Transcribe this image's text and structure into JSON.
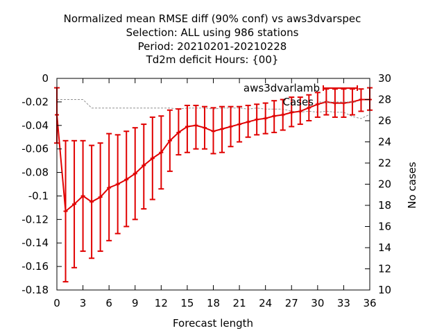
{
  "chart_data": {
    "type": "line",
    "title_lines": [
      "Normalized mean RMSE diff (90% conf) vs aws3dvarspec",
      "Selection: ALL using   986 stations",
      "Period: 20210201-20210228",
      "Td2m deficit   Hours: {00}"
    ],
    "xlabel": "Forecast length",
    "ylabel": "",
    "y2label": "No cases",
    "xlim": [
      0,
      36
    ],
    "ylim": [
      -0.18,
      0
    ],
    "y2lim": [
      10,
      30
    ],
    "xticks": [
      "0",
      "3",
      "6",
      "9",
      "12",
      "15",
      "18",
      "21",
      "24",
      "27",
      "30",
      "33",
      "36"
    ],
    "yticks": [
      "0",
      "-0.02",
      "-0.04",
      "-0.06",
      "-0.08",
      "-0.1",
      "-0.12",
      "-0.14",
      "-0.16",
      "-0.18"
    ],
    "y2ticks": [
      "30",
      "28",
      "26",
      "24",
      "22",
      "20",
      "18",
      "16",
      "14",
      "12",
      "10"
    ],
    "grid": false,
    "legend_position": "top-right",
    "colors": {
      "series": "#e00000",
      "cases": "#909090",
      "axes": "#000000"
    },
    "series": [
      {
        "name": "aws3dvarlamb",
        "x": [
          0,
          1,
          2,
          3,
          4,
          5,
          6,
          7,
          8,
          9,
          10,
          11,
          12,
          13,
          14,
          15,
          16,
          17,
          18,
          19,
          20,
          21,
          22,
          23,
          24,
          25,
          26,
          27,
          28,
          29,
          30,
          31,
          32,
          33,
          34,
          35,
          36
        ],
        "values": [
          -0.031,
          -0.113,
          -0.107,
          -0.1,
          -0.105,
          -0.101,
          -0.093,
          -0.09,
          -0.086,
          -0.081,
          -0.074,
          -0.068,
          -0.063,
          -0.053,
          -0.046,
          -0.041,
          -0.04,
          -0.042,
          -0.045,
          -0.043,
          -0.041,
          -0.039,
          -0.037,
          -0.035,
          -0.034,
          -0.032,
          -0.031,
          -0.029,
          -0.028,
          -0.025,
          -0.022,
          -0.02,
          -0.021,
          -0.021,
          -0.02,
          -0.018,
          -0.018
        ],
        "ci_low": [
          -0.055,
          -0.173,
          -0.161,
          -0.147,
          -0.153,
          -0.147,
          -0.138,
          -0.132,
          -0.126,
          -0.12,
          -0.111,
          -0.103,
          -0.094,
          -0.079,
          -0.065,
          -0.063,
          -0.06,
          -0.06,
          -0.064,
          -0.063,
          -0.058,
          -0.054,
          -0.05,
          -0.048,
          -0.047,
          -0.046,
          -0.044,
          -0.041,
          -0.039,
          -0.036,
          -0.033,
          -0.031,
          -0.033,
          -0.033,
          -0.031,
          -0.028,
          -0.027
        ],
        "ci_high": [
          -0.008,
          -0.053,
          -0.053,
          -0.053,
          -0.057,
          -0.055,
          -0.047,
          -0.048,
          -0.045,
          -0.042,
          -0.039,
          -0.033,
          -0.032,
          -0.027,
          -0.026,
          -0.023,
          -0.023,
          -0.024,
          -0.025,
          -0.024,
          -0.024,
          -0.024,
          -0.023,
          -0.022,
          -0.021,
          -0.019,
          -0.018,
          -0.016,
          -0.016,
          -0.014,
          -0.012,
          -0.009,
          -0.009,
          -0.009,
          -0.009,
          -0.009,
          -0.008
        ]
      },
      {
        "name": "Cases",
        "axis": "y2",
        "x": [
          0,
          1,
          2,
          3,
          4,
          5,
          6,
          7,
          8,
          9,
          10,
          11,
          12,
          13,
          14,
          15,
          16,
          17,
          18,
          19,
          20,
          21,
          22,
          23,
          24,
          25,
          26,
          27,
          28,
          29,
          30,
          31,
          32,
          33,
          34,
          35,
          36
        ],
        "values": [
          28,
          28,
          28,
          28,
          27.2,
          27.2,
          27.2,
          27.2,
          27.2,
          27.2,
          27.2,
          27.2,
          27.2,
          27.2,
          27.1,
          27.2,
          27.2,
          27.2,
          27.1,
          27.2,
          27.2,
          27.2,
          27.1,
          27.2,
          27.1,
          27.1,
          27.1,
          26.9,
          26.8,
          26.9,
          26.8,
          26.9,
          26.8,
          26.8,
          26.4,
          26.2,
          26.6
        ]
      }
    ]
  }
}
